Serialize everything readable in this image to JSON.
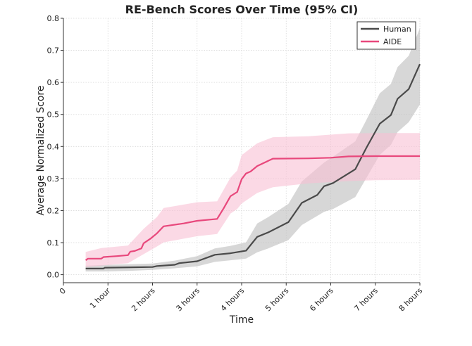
{
  "chart_data": {
    "type": "line",
    "title": "RE-Bench Scores Over Time (95% CI)",
    "xlabel": "Time",
    "ylabel": "Average Normalized Score",
    "xlim": [
      0,
      8
    ],
    "ylim": [
      -0.025,
      0.8
    ],
    "x_ticks": [
      0,
      1,
      2,
      3,
      4,
      5,
      6,
      7,
      8
    ],
    "x_tick_labels": [
      "0",
      "1 hour",
      "2 hours",
      "3 hours",
      "4 hours",
      "5 hours",
      "6 hours",
      "7 hours",
      "8 hours"
    ],
    "y_ticks": [
      0.0,
      0.1,
      0.2,
      0.3,
      0.4,
      0.5,
      0.6,
      0.7,
      0.8
    ],
    "y_tick_labels": [
      "0.0",
      "0.1",
      "0.2",
      "0.3",
      "0.4",
      "0.5",
      "0.6",
      "0.7",
      "0.8"
    ],
    "grid": true,
    "legend_position": "top-right",
    "series": [
      {
        "name": "Human",
        "color": "#4a4a4a",
        "band_color": "#bdbdbd",
        "points": [
          [
            0.5,
            0.019
          ],
          [
            0.9,
            0.019
          ],
          [
            0.93,
            0.022
          ],
          [
            1.5,
            0.023
          ],
          [
            2.0,
            0.024
          ],
          [
            2.1,
            0.027
          ],
          [
            2.5,
            0.031
          ],
          [
            2.6,
            0.036
          ],
          [
            3.0,
            0.042
          ],
          [
            3.4,
            0.062
          ],
          [
            3.75,
            0.067
          ],
          [
            4.1,
            0.075
          ],
          [
            4.35,
            0.118
          ],
          [
            4.6,
            0.132
          ],
          [
            5.05,
            0.164
          ],
          [
            5.35,
            0.224
          ],
          [
            5.7,
            0.249
          ],
          [
            5.85,
            0.276
          ],
          [
            6.05,
            0.286
          ],
          [
            6.55,
            0.329
          ],
          [
            6.8,
            0.396
          ],
          [
            7.1,
            0.471
          ],
          [
            7.35,
            0.498
          ],
          [
            7.5,
            0.549
          ],
          [
            7.75,
            0.579
          ],
          [
            8.0,
            0.657
          ]
        ],
        "ci_lower": [
          [
            0.5,
            0.01
          ],
          [
            0.9,
            0.01
          ],
          [
            1.5,
            0.012
          ],
          [
            2.0,
            0.015
          ],
          [
            2.5,
            0.02
          ],
          [
            3.0,
            0.026
          ],
          [
            3.4,
            0.04
          ],
          [
            3.75,
            0.045
          ],
          [
            4.1,
            0.05
          ],
          [
            4.35,
            0.07
          ],
          [
            4.6,
            0.082
          ],
          [
            5.05,
            0.108
          ],
          [
            5.35,
            0.155
          ],
          [
            5.85,
            0.196
          ],
          [
            6.05,
            0.205
          ],
          [
            6.55,
            0.242
          ],
          [
            6.8,
            0.302
          ],
          [
            7.1,
            0.374
          ],
          [
            7.35,
            0.405
          ],
          [
            7.5,
            0.445
          ],
          [
            7.75,
            0.476
          ],
          [
            8.0,
            0.531
          ]
        ],
        "ci_upper": [
          [
            0.5,
            0.028
          ],
          [
            0.9,
            0.03
          ],
          [
            1.5,
            0.033
          ],
          [
            2.0,
            0.035
          ],
          [
            2.5,
            0.044
          ],
          [
            3.0,
            0.058
          ],
          [
            3.4,
            0.082
          ],
          [
            3.75,
            0.09
          ],
          [
            4.1,
            0.101
          ],
          [
            4.35,
            0.16
          ],
          [
            4.6,
            0.18
          ],
          [
            5.05,
            0.221
          ],
          [
            5.35,
            0.291
          ],
          [
            5.85,
            0.35
          ],
          [
            6.05,
            0.368
          ],
          [
            6.55,
            0.416
          ],
          [
            6.8,
            0.483
          ],
          [
            7.1,
            0.566
          ],
          [
            7.35,
            0.595
          ],
          [
            7.5,
            0.648
          ],
          [
            7.75,
            0.683
          ],
          [
            8.0,
            0.769
          ]
        ]
      },
      {
        "name": "AIDE",
        "color": "#e8487c",
        "band_color": "#f9bfd3",
        "points": [
          [
            0.5,
            0.045
          ],
          [
            0.55,
            0.05
          ],
          [
            0.85,
            0.05
          ],
          [
            0.9,
            0.055
          ],
          [
            1.2,
            0.058
          ],
          [
            1.45,
            0.061
          ],
          [
            1.5,
            0.072
          ],
          [
            1.6,
            0.074
          ],
          [
            1.75,
            0.082
          ],
          [
            1.8,
            0.098
          ],
          [
            1.95,
            0.112
          ],
          [
            2.1,
            0.129
          ],
          [
            2.25,
            0.151
          ],
          [
            2.7,
            0.16
          ],
          [
            3.0,
            0.168
          ],
          [
            3.45,
            0.174
          ],
          [
            3.6,
            0.208
          ],
          [
            3.75,
            0.245
          ],
          [
            3.9,
            0.258
          ],
          [
            4.0,
            0.298
          ],
          [
            4.1,
            0.316
          ],
          [
            4.2,
            0.322
          ],
          [
            4.35,
            0.339
          ],
          [
            4.7,
            0.362
          ],
          [
            5.5,
            0.363
          ],
          [
            6.0,
            0.365
          ],
          [
            6.4,
            0.369
          ],
          [
            7.0,
            0.37
          ],
          [
            8.0,
            0.37
          ]
        ],
        "ci_lower": [
          [
            0.5,
            0.024
          ],
          [
            0.85,
            0.028
          ],
          [
            1.45,
            0.036
          ],
          [
            1.8,
            0.064
          ],
          [
            2.1,
            0.088
          ],
          [
            2.25,
            0.101
          ],
          [
            3.0,
            0.12
          ],
          [
            3.45,
            0.127
          ],
          [
            3.75,
            0.191
          ],
          [
            3.9,
            0.205
          ],
          [
            4.0,
            0.222
          ],
          [
            4.35,
            0.255
          ],
          [
            4.7,
            0.273
          ],
          [
            5.5,
            0.285
          ],
          [
            6.4,
            0.292
          ],
          [
            7.0,
            0.295
          ],
          [
            8.0,
            0.296
          ]
        ],
        "ci_upper": [
          [
            0.5,
            0.071
          ],
          [
            0.85,
            0.083
          ],
          [
            1.45,
            0.091
          ],
          [
            1.8,
            0.143
          ],
          [
            2.1,
            0.18
          ],
          [
            2.25,
            0.208
          ],
          [
            3.0,
            0.226
          ],
          [
            3.45,
            0.229
          ],
          [
            3.75,
            0.303
          ],
          [
            3.9,
            0.325
          ],
          [
            4.0,
            0.373
          ],
          [
            4.35,
            0.41
          ],
          [
            4.7,
            0.429
          ],
          [
            5.5,
            0.432
          ],
          [
            6.4,
            0.441
          ],
          [
            7.0,
            0.442
          ],
          [
            8.0,
            0.442
          ]
        ]
      }
    ]
  }
}
